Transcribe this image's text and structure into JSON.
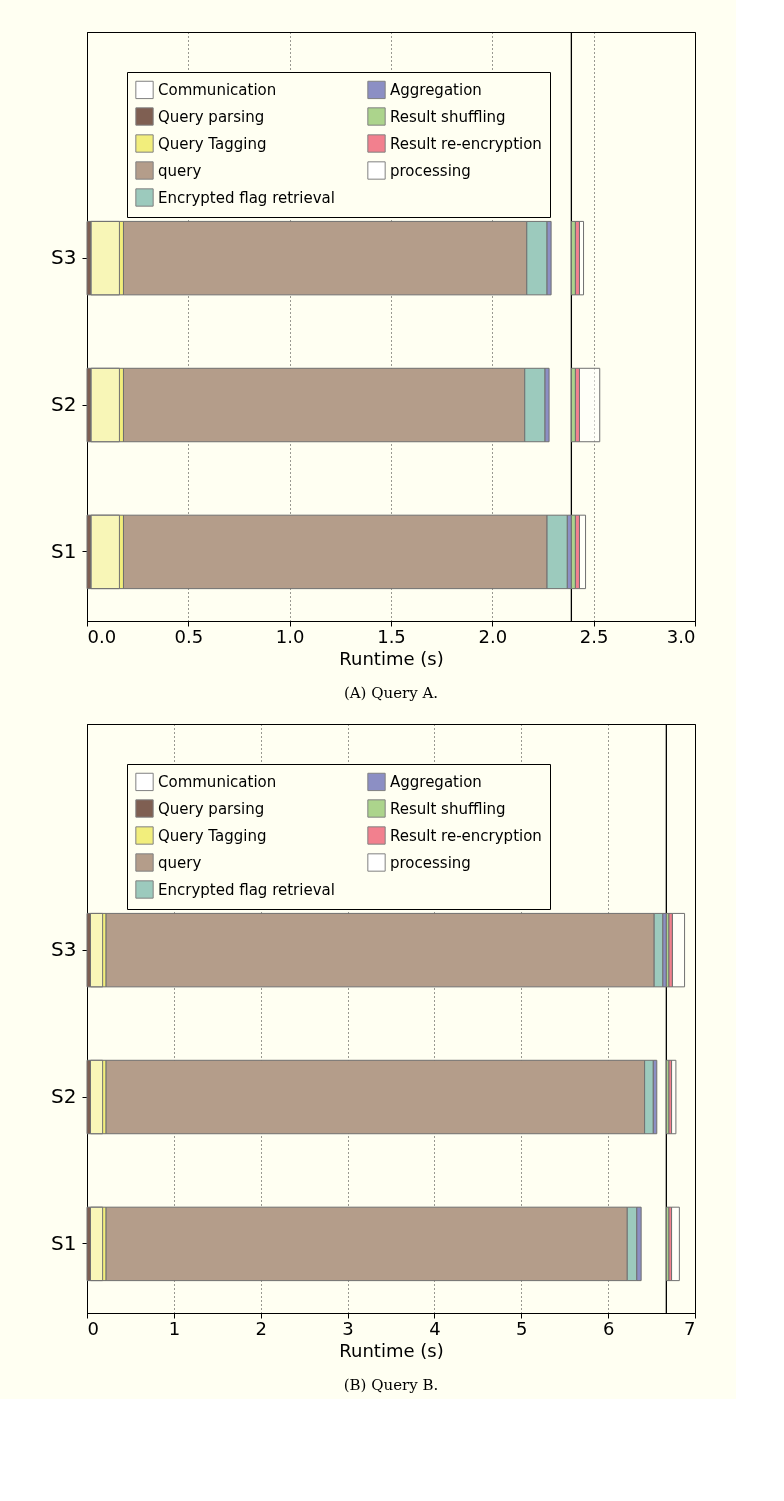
{
  "chart_data": [
    {
      "type": "bar",
      "orientation": "horizontal",
      "categories": [
        "S3",
        "S2",
        "S1"
      ],
      "xlabel": "Runtime (s)",
      "xlim": [
        0,
        3.0
      ],
      "xticks": [
        {
          "value": 0,
          "label": "0.0"
        },
        0.5,
        {
          "value": 1,
          "label": "1.0"
        },
        1.5,
        {
          "value": 2,
          "label": "2.0"
        },
        2.5,
        {
          "value": 3,
          "label": "3.0"
        }
      ],
      "grid": "x",
      "legend": "top left",
      "series": [
        {
          "name": "Communication",
          "color": "#ffffff",
          "base": [
            0.02,
            0.02,
            0.02
          ],
          "values": [
            0.14,
            0.14,
            0.14
          ]
        },
        {
          "name": "Query parsing",
          "color": "#7f5f52",
          "base": [
            0,
            0,
            0
          ],
          "values": [
            0.02,
            0.02,
            0.02
          ]
        },
        {
          "name": "Query Tagging",
          "color": "#f2ee7c",
          "base": [
            0.02,
            0.02,
            0.02
          ],
          "values": [
            0.16,
            0.16,
            0.16
          ]
        },
        {
          "name": "query",
          "color": "#b49d8a",
          "base": [
            0.18,
            0.18,
            0.18
          ],
          "values": [
            1.99,
            1.98,
            2.09
          ]
        },
        {
          "name": "Encrypted flag retrieval",
          "color": "#9ccabd",
          "base": [
            2.17,
            2.16,
            2.27
          ],
          "values": [
            0.1,
            0.1,
            0.1
          ]
        },
        {
          "name": "Aggregation",
          "color": "#8c8fc4",
          "base": [
            2.27,
            2.26,
            2.37
          ],
          "values": [
            0.02,
            0.02,
            0.02
          ]
        },
        {
          "name": "Result shuffling",
          "color": "#acd48c",
          "base": [
            2.39,
            2.39,
            2.39
          ],
          "values": [
            0.02,
            0.02,
            0.02
          ]
        },
        {
          "name": "Result re-encryption",
          "color": "#f2808e",
          "base": [
            2.41,
            2.41,
            2.41
          ],
          "values": [
            0.02,
            0.02,
            0.02
          ]
        },
        {
          "name": "processing",
          "color": "#ffffff",
          "base": [
            2.43,
            2.43,
            2.43
          ],
          "values": [
            0.02,
            0.1,
            0.03
          ]
        }
      ],
      "ref_lines": [
        {
          "axis": "x",
          "value": 2.39,
          "color": "#000000"
        }
      ],
      "annotations": [
        "(A) Query A."
      ]
    },
    {
      "type": "bar",
      "orientation": "horizontal",
      "categories": [
        "S3",
        "S2",
        "S1"
      ],
      "xlabel": "Runtime (s)",
      "xlim": [
        0,
        7
      ],
      "xticks": [
        0,
        1,
        2,
        3,
        4,
        5,
        6,
        7
      ],
      "grid": "x",
      "legend": "top left",
      "series": [
        {
          "name": "Communication",
          "color": "#ffffff",
          "base": [
            0.04,
            0.04,
            0.04
          ],
          "values": [
            0.14,
            0.14,
            0.14
          ]
        },
        {
          "name": "Query parsing",
          "color": "#7f5f52",
          "base": [
            0,
            0,
            0
          ],
          "values": [
            0.04,
            0.04,
            0.04
          ]
        },
        {
          "name": "Query Tagging",
          "color": "#f2ee7c",
          "base": [
            0.04,
            0.04,
            0.04
          ],
          "values": [
            0.18,
            0.18,
            0.18
          ]
        },
        {
          "name": "query",
          "color": "#b49d8a",
          "base": [
            0.22,
            0.22,
            0.22
          ],
          "values": [
            6.31,
            6.2,
            6.0
          ]
        },
        {
          "name": "Encrypted flag retrieval",
          "color": "#9ccabd",
          "base": [
            6.53,
            6.42,
            6.22
          ],
          "values": [
            0.1,
            0.1,
            0.11
          ]
        },
        {
          "name": "Aggregation",
          "color": "#8c8fc4",
          "base": [
            6.63,
            6.52,
            6.33
          ],
          "values": [
            0.04,
            0.04,
            0.05
          ]
        },
        {
          "name": "Result shuffling",
          "color": "#acd48c",
          "base": [
            6.67,
            6.67,
            6.67
          ],
          "values": [
            0.03,
            0.03,
            0.03
          ]
        },
        {
          "name": "Result re-encryption",
          "color": "#f2808e",
          "base": [
            6.7,
            6.7,
            6.7
          ],
          "values": [
            0.04,
            0.03,
            0.03
          ]
        },
        {
          "name": "processing",
          "color": "#ffffff",
          "base": [
            6.74,
            6.73,
            6.73
          ],
          "values": [
            0.14,
            0.05,
            0.09
          ]
        }
      ],
      "ref_lines": [
        {
          "axis": "x",
          "value": 6.67,
          "color": "#000000"
        }
      ],
      "annotations": [
        "(B) Query B."
      ]
    }
  ]
}
